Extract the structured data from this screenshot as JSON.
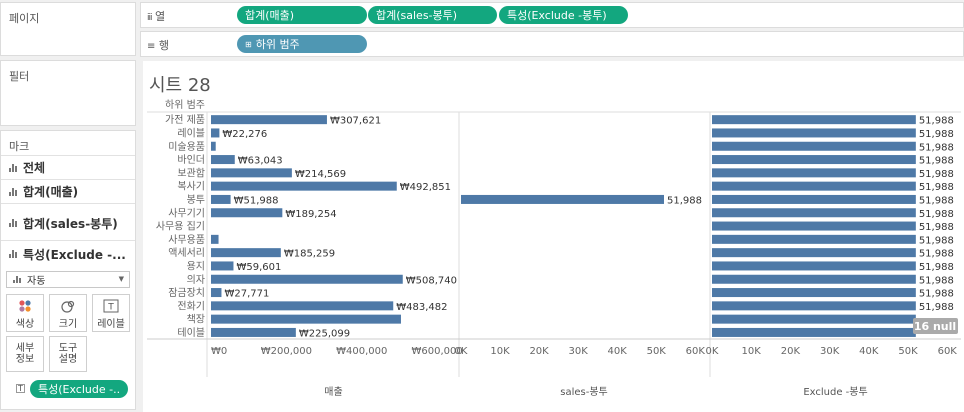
{
  "shelves": {
    "pages_label": "페이지",
    "filters_label": "필터",
    "marks_label": "마크",
    "columns": {
      "label": "열",
      "pills": [
        "합계(매출)",
        "합계(sales-봉투)",
        "특성(Exclude -봉투)"
      ]
    },
    "rows": {
      "label": "행",
      "pills": [
        "하위 범주"
      ]
    }
  },
  "marks": {
    "rows": [
      "전체",
      "합계(매출)",
      "합계(sales-봉투)",
      "특성(Exclude -..."
    ],
    "mark_type": "자동",
    "buttons": [
      "색상",
      "크기",
      "레이블",
      "세부 정보",
      "도구 설명"
    ],
    "detail_pill": "특성(Exclude -.."
  },
  "sheet": {
    "title": "시트 28",
    "row_header": "하위 범주",
    "null_badge": "16 null"
  },
  "colors": {
    "bar": "#4e79a7",
    "green_pill": "#13a77f",
    "blue_pill": "#4f97b3"
  },
  "chart_data": [
    {
      "type": "bar",
      "orientation": "horizontal",
      "categories": [
        "가전 제품",
        "레이블",
        "미술용품",
        "바인더",
        "보관함",
        "복사기",
        "봉투",
        "사무기기",
        "사무용 집기",
        "사무용품",
        "액세서리",
        "용지",
        "의자",
        "잠금장치",
        "전화기",
        "책장",
        "테이블"
      ],
      "values": [
        307621,
        22276,
        12500,
        63043,
        214569,
        492851,
        51988,
        189254,
        0,
        20000,
        185259,
        59601,
        508740,
        27771,
        483482,
        504000,
        225099
      ],
      "labels": [
        "₩307,621",
        "₩22,276",
        "",
        "₩63,043",
        "₩214,569",
        "₩492,851",
        "₩51,988",
        "₩189,254",
        "",
        "",
        "₩185,259",
        "₩59,601",
        "₩508,740",
        "₩27,771",
        "₩483,482",
        "",
        "₩225,099"
      ],
      "xlabel": "매출",
      "xlim": [
        0,
        650000
      ],
      "ticks": [
        "₩0",
        "₩200,000",
        "₩400,000",
        "₩600,000"
      ],
      "tick_values": [
        0,
        200000,
        400000,
        600000
      ]
    },
    {
      "type": "bar",
      "orientation": "horizontal",
      "categories": [
        "봉투"
      ],
      "values": [
        51988
      ],
      "labels": [
        "51,988"
      ],
      "xlabel": "sales-봉투",
      "xlim": [
        0,
        63000
      ],
      "ticks": [
        "0K",
        "10K",
        "20K",
        "30K",
        "40K",
        "50K",
        "60K"
      ],
      "tick_values": [
        0,
        10000,
        20000,
        30000,
        40000,
        50000,
        60000
      ]
    },
    {
      "type": "bar",
      "orientation": "horizontal",
      "categories": [
        "가전 제품",
        "레이블",
        "미술용품",
        "바인더",
        "보관함",
        "복사기",
        "봉투",
        "사무기기",
        "사무용 집기",
        "사무용품",
        "액세서리",
        "용지",
        "의자",
        "잠금장치",
        "전화기",
        "책장",
        "테이블"
      ],
      "values": [
        51988,
        51988,
        51988,
        51988,
        51988,
        51988,
        51988,
        51988,
        51988,
        51988,
        51988,
        51988,
        51988,
        51988,
        51988,
        51988,
        51988
      ],
      "labels": [
        "51,988",
        "51,988",
        "51,988",
        "51,988",
        "51,988",
        "51,988",
        "51,988",
        "51,988",
        "51,988",
        "51,988",
        "51,988",
        "51,988",
        "51,988",
        "51,988",
        "51,988",
        "",
        ""
      ],
      "xlabel": "Exclude -봉투",
      "xlim": [
        0,
        63000
      ],
      "ticks": [
        "0K",
        "10K",
        "20K",
        "30K",
        "40K",
        "50K",
        "60K"
      ],
      "tick_values": [
        0,
        10000,
        20000,
        30000,
        40000,
        50000,
        60000
      ]
    }
  ]
}
